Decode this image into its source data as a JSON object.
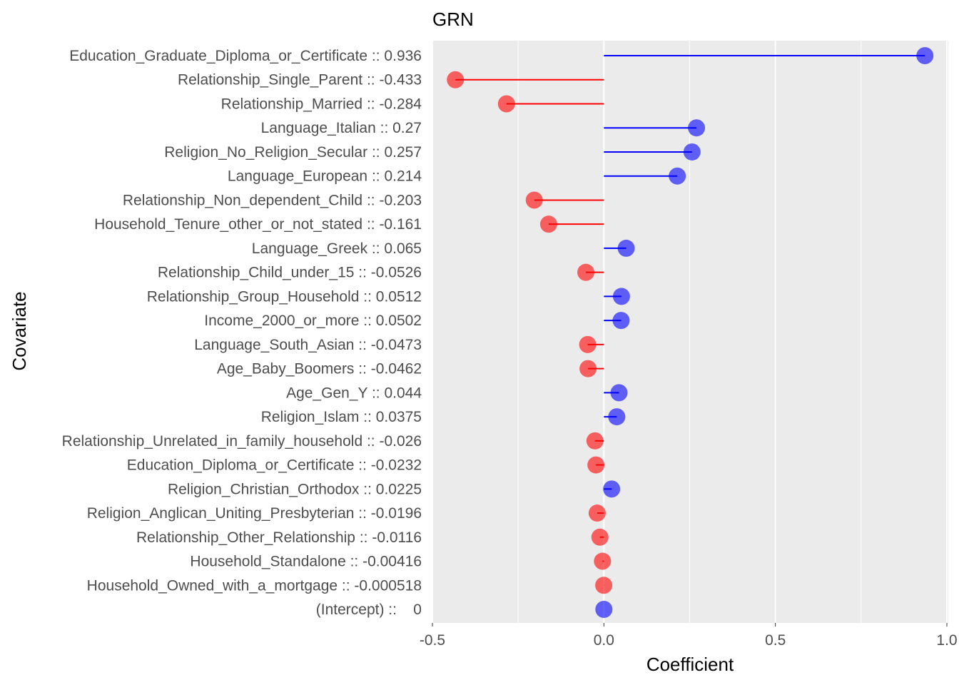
{
  "chart_data": {
    "type": "lollipop",
    "title": "GRN",
    "xlabel": "Coefficient",
    "ylabel": "Covariate",
    "xlim": [
      -0.5,
      1.0
    ],
    "xticks": [
      "-0.5",
      "0.0",
      "0.5",
      "1.0"
    ],
    "xtick_values": [
      -0.5,
      0.0,
      0.5,
      1.0
    ],
    "grid": true,
    "colors": {
      "positive": "#0000ff",
      "negative": "#ff0000",
      "panel": "#ebebeb",
      "grid": "#ffffff"
    },
    "items": [
      {
        "label": "Education_Graduate_Diploma_or_Certificate :: 0.936",
        "value": 0.936
      },
      {
        "label": "Relationship_Single_Parent :: -0.433",
        "value": -0.433
      },
      {
        "label": "Relationship_Married :: -0.284",
        "value": -0.284
      },
      {
        "label": "Language_Italian :: 0.27",
        "value": 0.27
      },
      {
        "label": "Religion_No_Religion_Secular :: 0.257",
        "value": 0.257
      },
      {
        "label": "Language_European :: 0.214",
        "value": 0.214
      },
      {
        "label": "Relationship_Non_dependent_Child :: -0.203",
        "value": -0.203
      },
      {
        "label": "Household_Tenure_other_or_not_stated :: -0.161",
        "value": -0.161
      },
      {
        "label": "Language_Greek :: 0.065",
        "value": 0.065
      },
      {
        "label": "Relationship_Child_under_15 :: -0.0526",
        "value": -0.0526
      },
      {
        "label": "Relationship_Group_Household :: 0.0512",
        "value": 0.0512
      },
      {
        "label": "Income_2000_or_more :: 0.0502",
        "value": 0.0502
      },
      {
        "label": "Language_South_Asian :: -0.0473",
        "value": -0.0473
      },
      {
        "label": "Age_Baby_Boomers :: -0.0462",
        "value": -0.0462
      },
      {
        "label": "Age_Gen_Y :: 0.044",
        "value": 0.044
      },
      {
        "label": "Religion_Islam :: 0.0375",
        "value": 0.0375
      },
      {
        "label": "Relationship_Unrelated_in_family_household :: -0.026",
        "value": -0.026
      },
      {
        "label": "Education_Diploma_or_Certificate :: -0.0232",
        "value": -0.0232
      },
      {
        "label": "Religion_Christian_Orthodox :: 0.0225",
        "value": 0.0225
      },
      {
        "label": "Religion_Anglican_Uniting_Presbyterian :: -0.0196",
        "value": -0.0196
      },
      {
        "label": "Relationship_Other_Relationship :: -0.0116",
        "value": -0.0116
      },
      {
        "label": "Household_Standalone :: -0.00416",
        "value": -0.00416
      },
      {
        "label": "Household_Owned_with_a_mortgage :: -0.000518",
        "value": -0.000518
      },
      {
        "label": "(Intercept) ::    0",
        "value": 0
      }
    ]
  }
}
